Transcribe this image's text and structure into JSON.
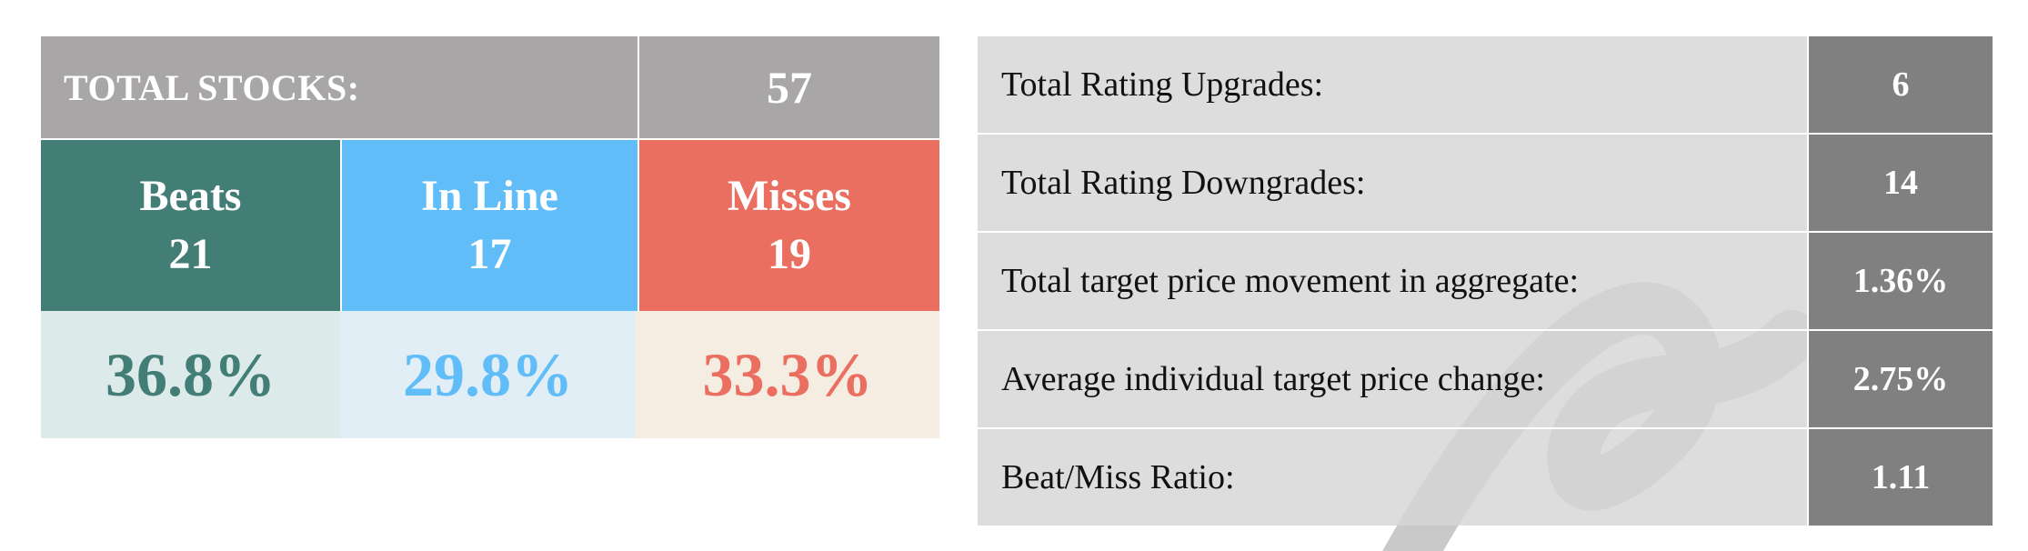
{
  "summary": {
    "total_label": "TOTAL STOCKS:",
    "total_value": "57",
    "categories": [
      {
        "name": "Beats",
        "count": "21",
        "percent": "36.8%",
        "color": "#437e76"
      },
      {
        "name": "In Line",
        "count": "17",
        "percent": "29.8%",
        "color": "#61bdf8"
      },
      {
        "name": "Misses",
        "count": "19",
        "percent": "33.3%",
        "color": "#ea6f60"
      }
    ]
  },
  "stats": [
    {
      "label": "Total Rating Upgrades:",
      "value": "6"
    },
    {
      "label": "Total Rating Downgrades:",
      "value": "14"
    },
    {
      "label": "Total target price movement in aggregate:",
      "value": "1.36%"
    },
    {
      "label": "Average individual target price change:",
      "value": "2.75%"
    },
    {
      "label": "Beat/Miss Ratio:",
      "value": "1.11"
    }
  ]
}
